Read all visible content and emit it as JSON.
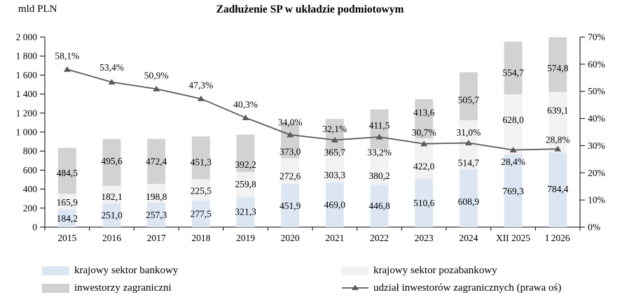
{
  "page": {
    "unit_label": "mld PLN",
    "title": "Zadłużenie SP w układzie podmiotowym"
  },
  "chart_data": {
    "type": "bar",
    "subtype": "stacked-bars-with-line-overlay",
    "title": "Zadłużenie SP w układzie podmiotowym",
    "unit_label": "mld PLN",
    "grid": false,
    "legend_position": "bottom",
    "categories": [
      "2015",
      "2016",
      "2017",
      "2018",
      "2019",
      "2020",
      "2021",
      "2022",
      "2023",
      "2024",
      "XII 2025",
      "I 2026"
    ],
    "stack_series": [
      {
        "name": "krajowy sektor bankowy",
        "color": "#dce6f2",
        "values": [
          184.2,
          251.0,
          257.3,
          277.5,
          321.3,
          451.9,
          469.0,
          446.8,
          510.6,
          608.9,
          769.3,
          784.4
        ],
        "labels": [
          "184,2",
          "251,0",
          "257,3",
          "277,5",
          "321,3",
          "451,9",
          "469,0",
          "446,8",
          "510,6",
          "608,9",
          "769,3",
          "784,4"
        ],
        "label_dy": [
          0,
          0,
          0,
          0,
          0,
          0,
          0,
          0,
          0,
          5,
          1,
          -1
        ]
      },
      {
        "name": "krajowy sektor pozabankowy",
        "color": "#f2f2f2",
        "values": [
          165.9,
          182.1,
          198.8,
          225.5,
          259.8,
          272.6,
          303.3,
          380.2,
          422.0,
          514.7,
          628.0,
          639.1
        ],
        "labels": [
          "165,9",
          "182,1",
          "198,8",
          "225,5",
          "259,8",
          "272,6",
          "303,3",
          "380,2",
          "422,0",
          "514,7",
          "628,0",
          "639,1"
        ],
        "label_dy": [
          1,
          3,
          5,
          1,
          0,
          7,
          10,
          13,
          11,
          26,
          -6,
          -17
        ]
      },
      {
        "name": "inwestorzy zagraniczni",
        "color": "#d2d2d2",
        "values": [
          484.5,
          495.6,
          472.4,
          451.3,
          392.2,
          373.0,
          365.7,
          411.5,
          413.6,
          505.7,
          554.7,
          574.8
        ],
        "labels": [
          "484,5",
          "495,6",
          "472,4",
          "451,3",
          "392,2",
          "373,0",
          "365,7",
          "411,5",
          "413,6",
          "505,7",
          "554,7",
          "574,8"
        ],
        "label_dy": [
          3,
          -2,
          0,
          6,
          16,
          16,
          23,
          -5,
          -9,
          5,
          7,
          5
        ]
      }
    ],
    "line_series": {
      "name": "udział inwestorów zagranicznych (prawa oś)",
      "color": "#595959",
      "values": [
        58.1,
        53.4,
        50.9,
        47.3,
        40.3,
        34.0,
        32.1,
        33.2,
        30.7,
        31.0,
        28.4,
        28.8
      ],
      "labels": [
        "58,1%",
        "53,4%",
        "50,9%",
        "47,3%",
        "40,3%",
        "34,0%",
        "32,1%",
        "33,2%",
        "30,7%",
        "31,0%",
        "28,4%",
        "28,8%"
      ],
      "label_dy": [
        -19,
        -21,
        -19,
        -19,
        -19,
        -18,
        -16,
        22,
        -16,
        -15,
        17,
        -13
      ]
    },
    "left_axis": {
      "min": 0,
      "max": 2000,
      "ticks": [
        "0",
        "200",
        "400",
        "600",
        "800",
        "1 000",
        "1 200",
        "1 400",
        "1 600",
        "1 800",
        "2 000"
      ]
    },
    "right_axis": {
      "min": 0,
      "max": 70,
      "ticks": [
        "0%",
        "10%",
        "20%",
        "30%",
        "40%",
        "50%",
        "60%",
        "70%"
      ]
    }
  }
}
